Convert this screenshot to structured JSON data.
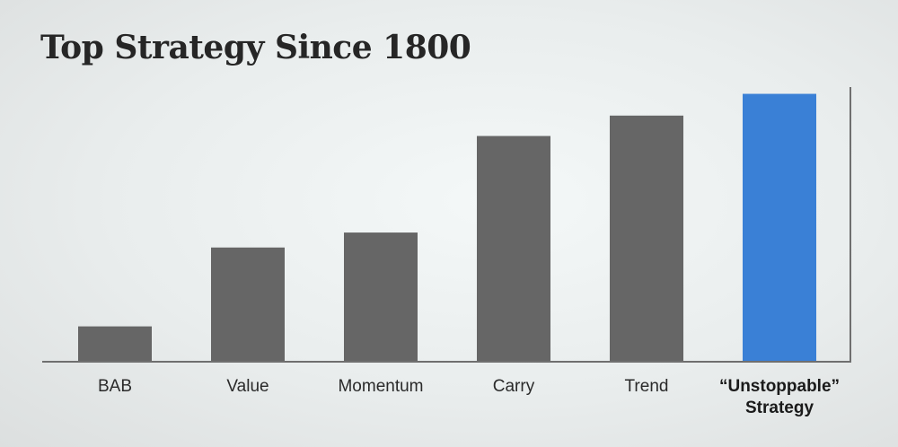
{
  "chart_data": {
    "type": "bar",
    "title": "Top Strategy Since 1800",
    "xlabel": "",
    "ylabel": "",
    "categories": [
      "BAB",
      "Value",
      "Momentum",
      "Carry",
      "Trend",
      "“Unstoppable” Strategy"
    ],
    "category_lines": [
      [
        "BAB"
      ],
      [
        "Value"
      ],
      [
        "Momentum"
      ],
      [
        "Carry"
      ],
      [
        "Trend"
      ],
      [
        "“Unstoppable”",
        "Strategy"
      ]
    ],
    "values": [
      13,
      42,
      47.5,
      83,
      90.5,
      98.5
    ],
    "highlight_index": 5,
    "ylim": [
      0,
      100
    ],
    "grid": false,
    "colors": {
      "bar": "#666666",
      "highlight": "#3a80d6",
      "axis": "#6f6f6f",
      "title": "#262626"
    }
  }
}
